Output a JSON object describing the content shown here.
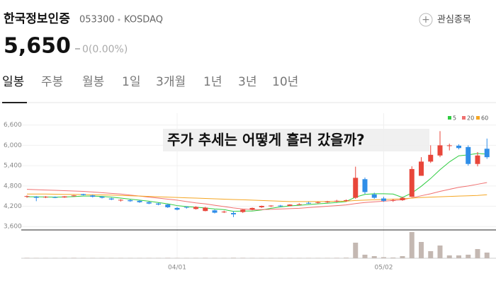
{
  "header": {
    "name": "한국정보인증",
    "code": "053300",
    "market": "KOSDAQ",
    "watch": "관심종목",
    "price": "5,650",
    "change": "0(0.00%)"
  },
  "tabs": [
    "일봉",
    "주봉",
    "월봉",
    "1일",
    "3개월",
    "1년",
    "3년",
    "10년"
  ],
  "chart_data": {
    "type": "candlestick",
    "annotation": "주가 추세는 어떻게 흘러 갔을까?",
    "categories": [
      null,
      null,
      null,
      null,
      null,
      null,
      null,
      null,
      null,
      null,
      null,
      null,
      null,
      null,
      null,
      null,
      "04/01",
      null,
      null,
      null,
      null,
      null,
      null,
      null,
      null,
      null,
      null,
      null,
      null,
      null,
      null,
      null,
      null,
      null,
      null,
      null,
      null,
      null,
      "05/02",
      null,
      null,
      null,
      null,
      null,
      null,
      null,
      null,
      null,
      null,
      null
    ],
    "open": [
      4480,
      4480,
      4460,
      4470,
      4460,
      4500,
      4560,
      4520,
      4480,
      4430,
      4370,
      4380,
      4360,
      4320,
      4280,
      4250,
      4150,
      4180,
      4120,
      4060,
      4080,
      4030,
      4000,
      4030,
      4100,
      4170,
      4200,
      4220,
      4210,
      4250,
      4300,
      4300,
      4330,
      4350,
      4360,
      4450,
      5000,
      4550,
      4430,
      4360,
      4380,
      4480,
      5100,
      5520,
      5700,
      5980,
      5990,
      5950,
      5450,
      5900
    ],
    "high": [
      4520,
      4500,
      4500,
      4490,
      4500,
      4530,
      4570,
      4540,
      4500,
      4450,
      4410,
      4400,
      4380,
      4340,
      4300,
      4270,
      4180,
      4200,
      4200,
      4180,
      4100,
      4070,
      4060,
      4110,
      4160,
      4220,
      4230,
      4240,
      4260,
      4290,
      4330,
      4340,
      4360,
      4390,
      4400,
      5370,
      5050,
      4600,
      4480,
      4420,
      4480,
      5380,
      5650,
      6000,
      6420,
      6050,
      6030,
      6000,
      5800,
      6200
    ],
    "low": [
      4450,
      4350,
      4440,
      4440,
      4450,
      4480,
      4520,
      4460,
      4430,
      4380,
      4340,
      4330,
      4300,
      4260,
      4230,
      4150,
      4080,
      4130,
      4100,
      4050,
      3990,
      4000,
      3880,
      4000,
      4080,
      4150,
      4180,
      4180,
      4200,
      4230,
      4270,
      4280,
      4300,
      4320,
      4330,
      4420,
      4560,
      4420,
      4330,
      4330,
      4360,
      4470,
      5100,
      5480,
      5650,
      5850,
      5880,
      5400,
      5380,
      5600
    ],
    "close": [
      4500,
      4450,
      4480,
      4460,
      4490,
      4520,
      4530,
      4480,
      4450,
      4400,
      4390,
      4350,
      4320,
      4280,
      4250,
      4170,
      4100,
      4160,
      4180,
      4160,
      4010,
      4040,
      3960,
      4100,
      4150,
      4210,
      4220,
      4200,
      4250,
      4260,
      4290,
      4320,
      4340,
      4360,
      4380,
      5040,
      4620,
      4450,
      4360,
      4380,
      4450,
      5300,
      5520,
      5720,
      6000,
      6000,
      5920,
      5450,
      5700,
      5650
    ],
    "volume": [
      60000,
      50000,
      40000,
      40000,
      50000,
      60000,
      50000,
      50000,
      40000,
      40000,
      50000,
      40000,
      40000,
      50000,
      40000,
      60000,
      50000,
      40000,
      50000,
      60000,
      50000,
      40000,
      70000,
      60000,
      50000,
      40000,
      40000,
      40000,
      50000,
      40000,
      50000,
      40000,
      50000,
      60000,
      80000,
      2200000,
      500000,
      300000,
      150000,
      100000,
      300000,
      3700000,
      2300000,
      1000000,
      1800000,
      400000,
      400000,
      500000,
      1300000,
      800000
    ],
    "volume_lim": [
      0,
      4000000
    ],
    "up_color": "#e8463a",
    "down_color": "#2f8ee8",
    "volume_color": "#c4b8b2",
    "ylim": [
      3500,
      6950
    ],
    "yticks": [
      {
        "value": 3600,
        "label": "3,600"
      },
      {
        "value": 4200,
        "label": "4,200"
      },
      {
        "value": 4800,
        "label": "4,800"
      },
      {
        "value": 5400,
        "label": "5,400"
      },
      {
        "value": 6000,
        "label": "6,000"
      },
      {
        "value": 6600,
        "label": "6,600"
      }
    ],
    "grid": true,
    "series": [
      {
        "name": "5",
        "color": "#2ecc40",
        "values": [
          4480,
          4480,
          4475,
          4470,
          4475,
          4485,
          4500,
          4500,
          4490,
          4470,
          4440,
          4410,
          4380,
          4350,
          4310,
          4270,
          4220,
          4190,
          4170,
          4150,
          4120,
          4100,
          4050,
          4060,
          4060,
          4090,
          4140,
          4180,
          4210,
          4230,
          4250,
          4270,
          4290,
          4310,
          4340,
          4470,
          4550,
          4570,
          4570,
          4560,
          4460,
          4590,
          4790,
          5020,
          5280,
          5510,
          5690,
          5720,
          5760,
          5740
        ]
      },
      {
        "name": "20",
        "color": "#f07070",
        "values": [
          4700,
          4690,
          4680,
          4670,
          4660,
          4650,
          4640,
          4620,
          4600,
          4580,
          4560,
          4530,
          4500,
          4470,
          4440,
          4410,
          4380,
          4340,
          4300,
          4270,
          4230,
          4190,
          4150,
          4120,
          4100,
          4100,
          4110,
          4120,
          4130,
          4140,
          4160,
          4180,
          4200,
          4220,
          4240,
          4280,
          4310,
          4330,
          4350,
          4370,
          4390,
          4450,
          4510,
          4570,
          4640,
          4700,
          4760,
          4800,
          4850,
          4900
        ]
      },
      {
        "name": "60",
        "color": "#f5a623",
        "values": [
          4560,
          4560,
          4560,
          4555,
          4550,
          4550,
          4545,
          4540,
          4535,
          4530,
          4520,
          4510,
          4500,
          4490,
          4480,
          4470,
          4460,
          4450,
          4440,
          4430,
          4420,
          4410,
          4400,
          4390,
          4380,
          4370,
          4360,
          4350,
          4340,
          4340,
          4340,
          4340,
          4340,
          4350,
          4350,
          4370,
          4380,
          4390,
          4400,
          4410,
          4420,
          4440,
          4460,
          4470,
          4480,
          4490,
          4500,
          4510,
          4520,
          4540
        ]
      }
    ]
  }
}
